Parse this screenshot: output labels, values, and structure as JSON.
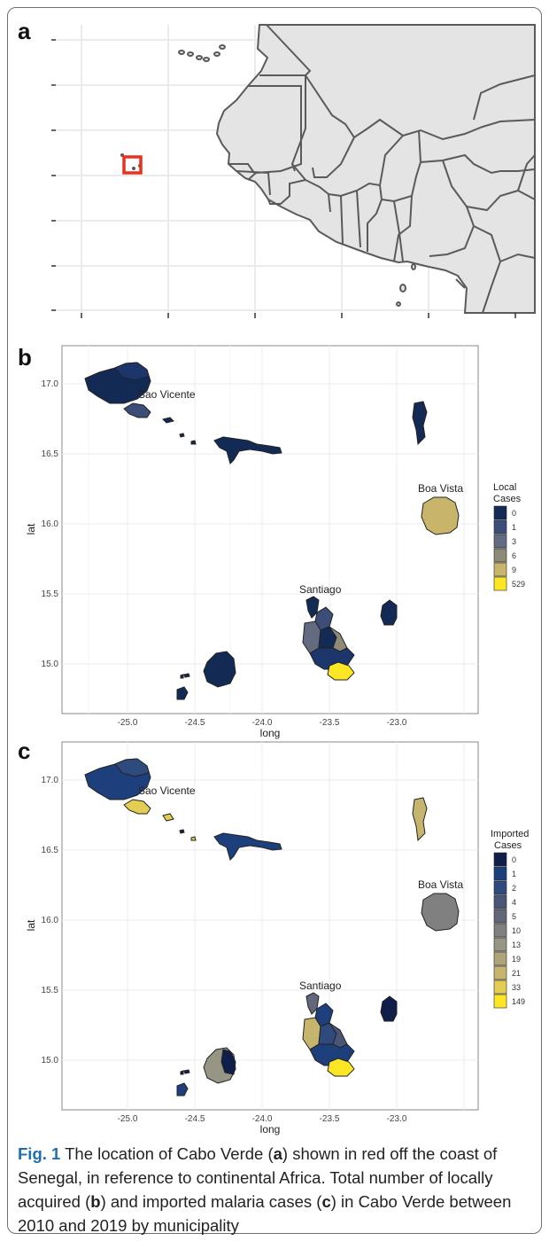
{
  "panels": {
    "a": {
      "letter": "a"
    },
    "b": {
      "letter": "b",
      "xlabel": "long",
      "ylabel": "lat",
      "x_ticks": [
        "-25.0",
        "-24.5",
        "-24.0",
        "-23.5",
        "-23.0"
      ],
      "y_ticks": [
        "17.0",
        "16.5",
        "16.0",
        "15.5",
        "15.0"
      ],
      "labels": {
        "sao_vicente": "Sao Vicente",
        "boa_vista": "Boa Vista",
        "santiago": "Santiago"
      },
      "legend": {
        "title_line1": "Local",
        "title_line2": "Cases",
        "entries": [
          "0",
          "1",
          "3",
          "6",
          "9",
          "529"
        ],
        "colors": [
          "#132a55",
          "#3c4d78",
          "#636b80",
          "#8e8a78",
          "#c9b56a",
          "#fde725"
        ]
      }
    },
    "c": {
      "letter": "c",
      "xlabel": "long",
      "ylabel": "lat",
      "x_ticks": [
        "-25.0",
        "-24.5",
        "-24.0",
        "-23.5",
        "-23.0"
      ],
      "y_ticks": [
        "17.0",
        "16.5",
        "16.0",
        "15.5",
        "15.0"
      ],
      "labels": {
        "sao_vicente": "Sao Vicente",
        "boa_vista": "Boa Vista",
        "santiago": "Santiago"
      },
      "legend": {
        "title_line1": "Imported",
        "title_line2": "Cases",
        "entries": [
          "0",
          "1",
          "2",
          "4",
          "5",
          "10",
          "13",
          "19",
          "21",
          "33",
          "149"
        ],
        "colors": [
          "#101f4a",
          "#1d3f7c",
          "#2f4a7d",
          "#4a5676",
          "#62687a",
          "#808080",
          "#979684",
          "#aea479",
          "#c6b56c",
          "#e4cd53",
          "#fde725"
        ]
      }
    }
  },
  "caption": {
    "label": "Fig. 1",
    "text_1": "  The location of Cabo Verde (",
    "a": "a",
    "text_2": ") shown in red off the coast of Senegal, in reference to continental Africa. Total number of locally acquired (",
    "b": "b",
    "text_3": ") and imported malaria cases (",
    "c": "c",
    "text_4": ") in Cabo Verde between 2010 and 2019 by municipality"
  },
  "colors": {
    "ocean": "#ffffff",
    "land": "#e4e4e4",
    "border": "#5a5a5a",
    "highlight": "#e8321e",
    "gridline": "#ebebeb"
  }
}
